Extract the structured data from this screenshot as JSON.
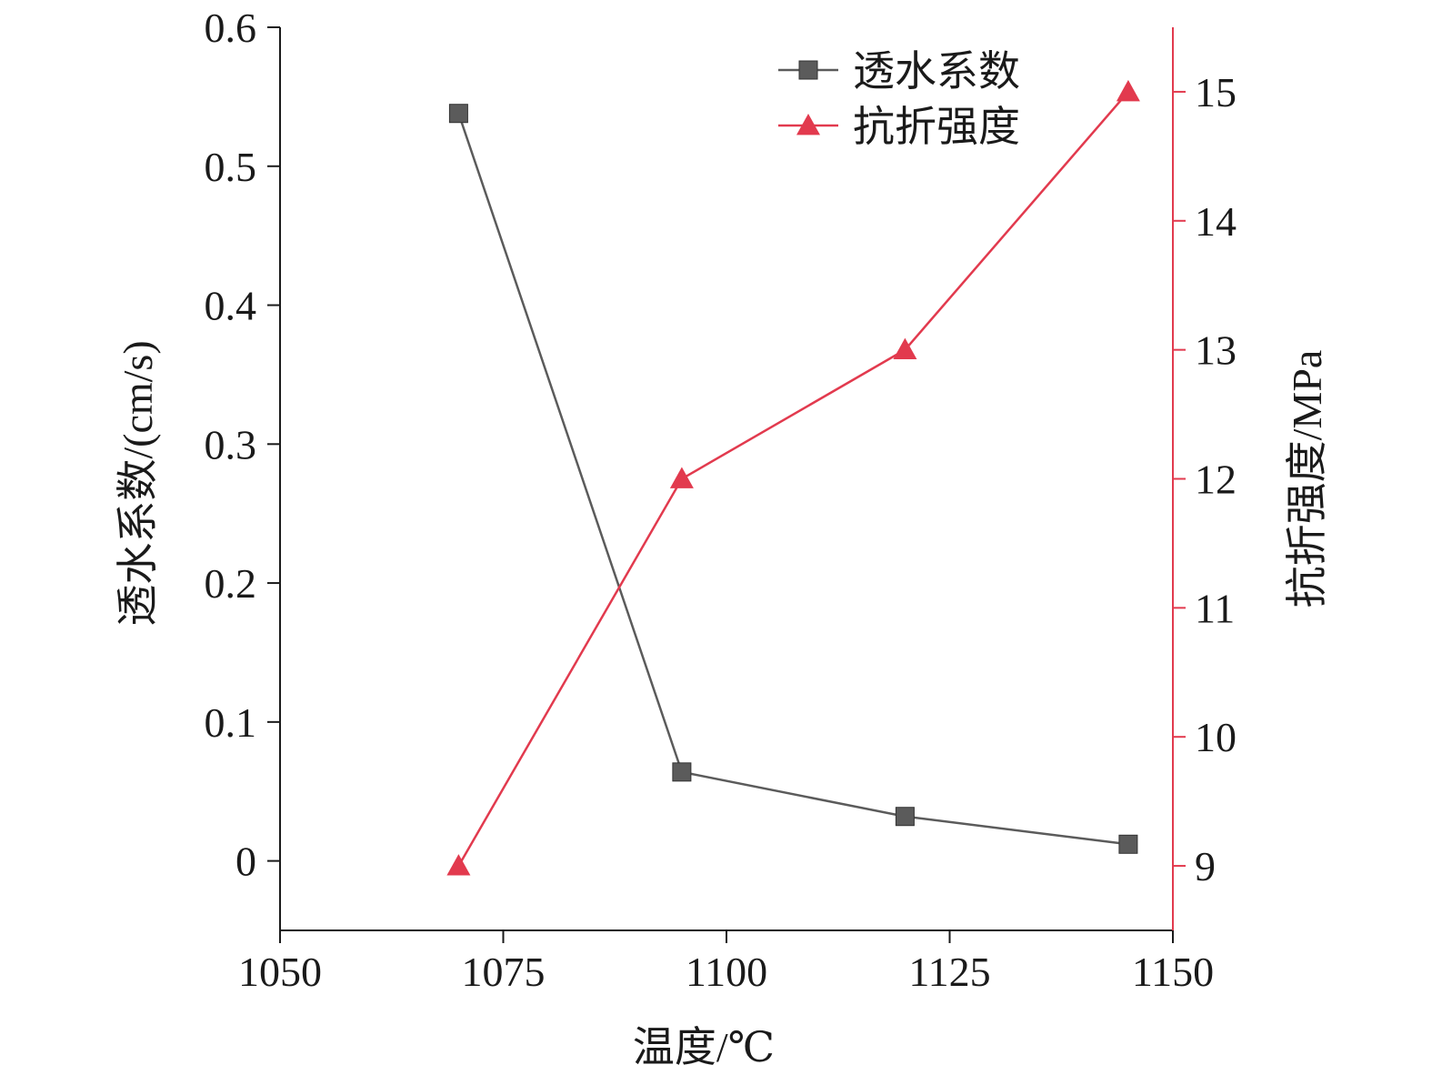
{
  "chart_data": {
    "type": "line",
    "title": "",
    "xlabel": "温度/℃",
    "ylabel_left": "透水系数/(cm/s)",
    "ylabel_right": "抗折强度/MPa",
    "xlim": [
      1050,
      1150
    ],
    "xticks": [
      "1050",
      "1075",
      "1100",
      "1125",
      "1150"
    ],
    "ylim_left": [
      -0.05,
      0.6
    ],
    "yticks_left": [
      "0",
      "0.1",
      "0.2",
      "0.3",
      "0.4",
      "0.5",
      "0.6"
    ],
    "ylim_right": [
      8.5,
      15.5
    ],
    "yticks_right": [
      "9",
      "10",
      "11",
      "12",
      "13",
      "14",
      "15"
    ],
    "grid": false,
    "legend_position": "top-right",
    "x": [
      1070,
      1095,
      1120,
      1145
    ],
    "series": [
      {
        "name": "透水系数",
        "axis": "left",
        "marker": "square",
        "color": "#5b5b5b",
        "values": [
          0.538,
          0.064,
          0.032,
          0.012
        ]
      },
      {
        "name": "抗折强度",
        "axis": "right",
        "marker": "triangle",
        "color": "#e23a4e",
        "values": [
          9.0,
          12.0,
          13.0,
          15.0
        ]
      }
    ]
  }
}
